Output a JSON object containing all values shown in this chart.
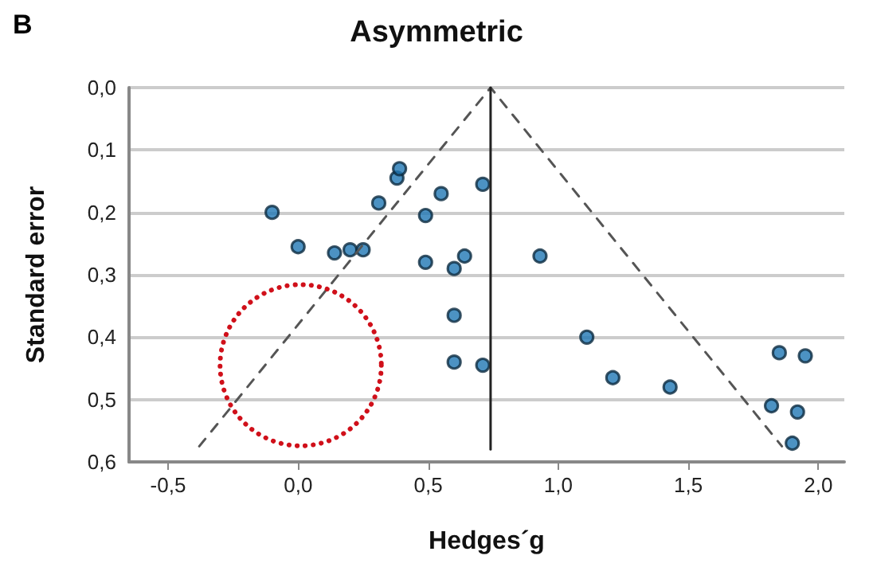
{
  "chart_data": {
    "type": "scatter",
    "title": "Asymmetric",
    "xlabel": "Hedges´g",
    "ylabel": "Standard error",
    "annotations": [
      "B"
    ],
    "xlim": [
      -0.65,
      2.1
    ],
    "ylim": [
      0.6,
      0.0
    ],
    "xticks": [
      {
        "value": -0.5,
        "label": "-0,5"
      },
      {
        "value": 0,
        "label": "0,0"
      },
      {
        "value": 0.5,
        "label": "0,5"
      },
      {
        "value": 1,
        "label": "1,0"
      },
      {
        "value": 1.5,
        "label": "1,5"
      },
      {
        "value": 2,
        "label": "2,0"
      }
    ],
    "yticks": [
      {
        "value": 0,
        "label": "0,0"
      },
      {
        "value": 0.1,
        "label": "0,1"
      },
      {
        "value": 0.2,
        "label": "0,2"
      },
      {
        "value": 0.3,
        "label": "0,3"
      },
      {
        "value": 0.4,
        "label": "0,4"
      },
      {
        "value": 0.5,
        "label": "0,5"
      },
      {
        "value": 0.6,
        "label": "0,6"
      }
    ],
    "grid": "y",
    "marker": "circle",
    "series": [
      {
        "color": "#1f77b4",
        "x": [
          -0.1,
          0.0,
          0.14,
          0.2,
          0.25,
          0.31,
          0.38,
          0.39,
          0.55,
          0.49,
          0.49,
          0.6,
          0.64,
          0.6,
          0.6,
          0.71,
          0.71,
          0.93,
          1.11,
          1.21,
          1.43,
          1.85,
          1.95,
          1.82,
          1.92,
          1.9
        ],
        "values": [
          0.2,
          0.255,
          0.265,
          0.26,
          0.26,
          0.185,
          0.145,
          0.13,
          0.17,
          0.205,
          0.28,
          0.29,
          0.27,
          0.365,
          0.44,
          0.155,
          0.445,
          0.27,
          0.4,
          0.465,
          0.48,
          0.425,
          0.43,
          0.51,
          0.52,
          0.57
        ]
      },
      {
        "type": "line",
        "color": "#555555",
        "line_style": "dashed",
        "marker": "none",
        "x": [
          -0.38,
          0.74,
          1.86
        ],
        "values": [
          0.575,
          0.0,
          0.575
        ]
      },
      {
        "type": "line",
        "color": "#222222",
        "line_style": "solid",
        "marker": "none",
        "x": [
          0.74,
          0.74
        ],
        "values": [
          0.58,
          0.0
        ]
      }
    ]
  }
}
